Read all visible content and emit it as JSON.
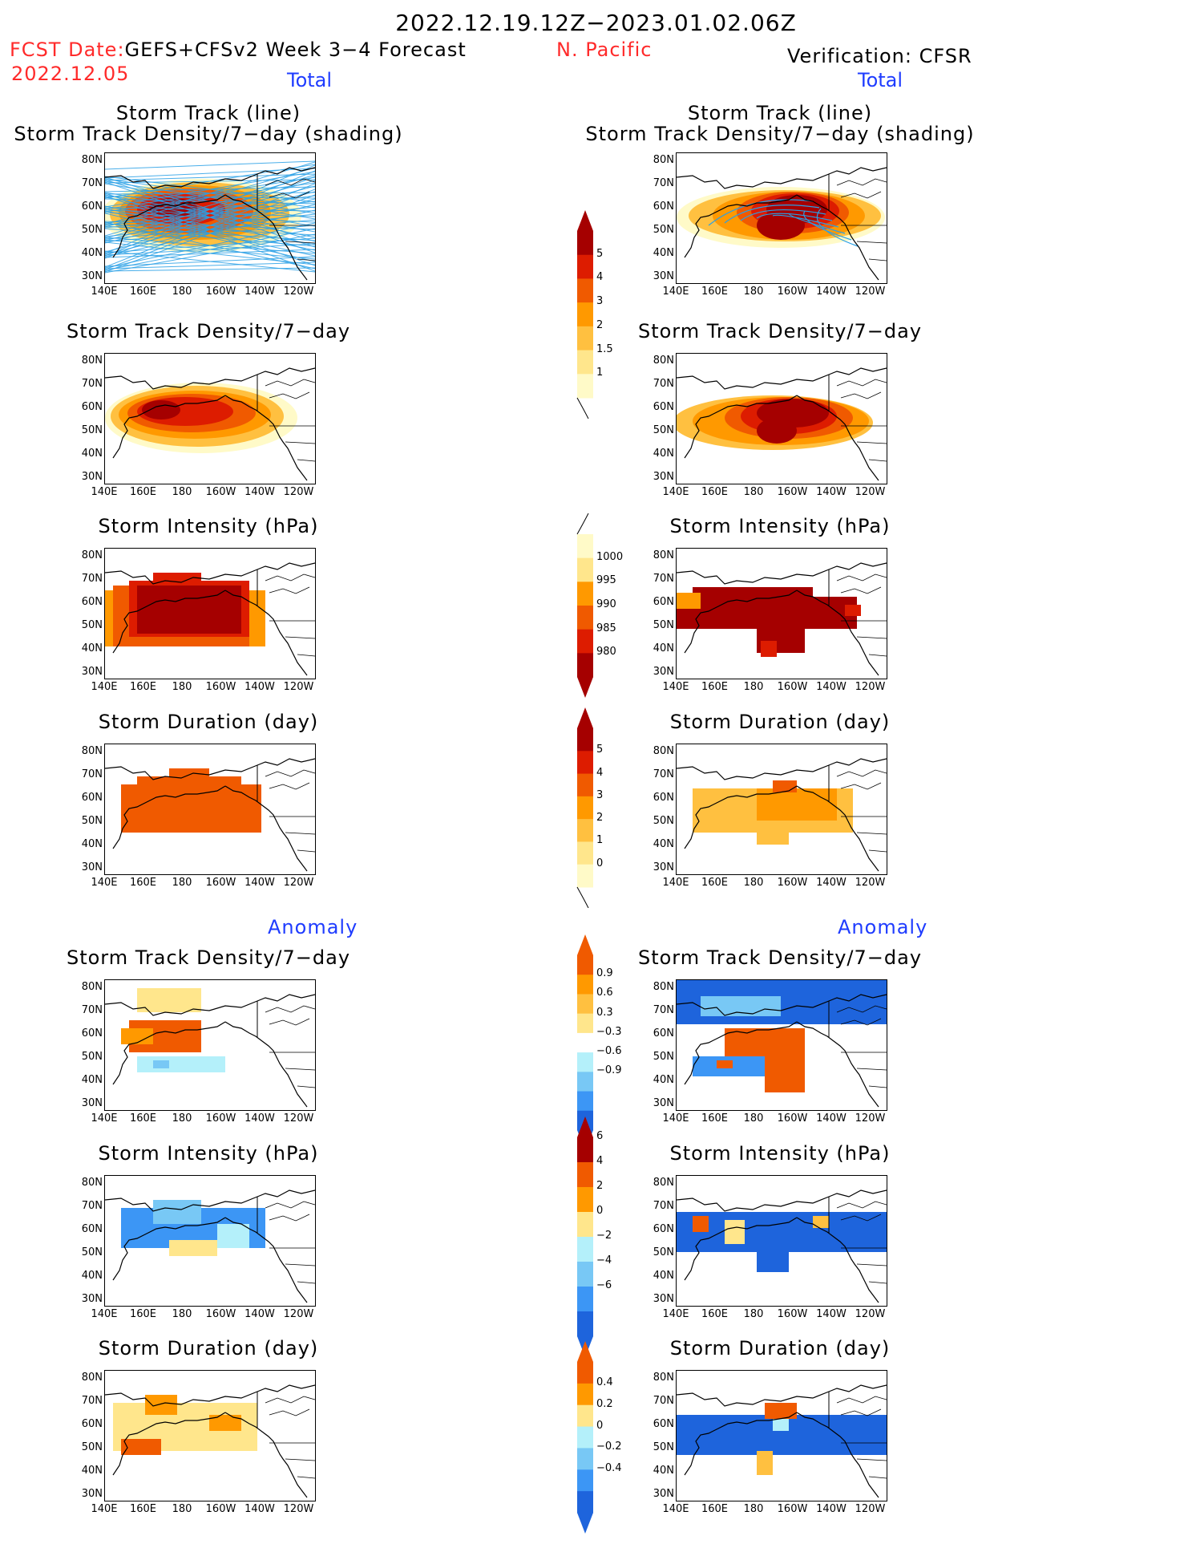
{
  "header": {
    "period": "2022.12.19.12Z−2023.01.02.06Z",
    "region": "N. Pacific",
    "fcst_label": "FCST Date:",
    "fcst_model": "GEFS+CFSv2 Week 3−4 Forecast",
    "fcst_date": "2022.12.05",
    "verification": "Verification: CFSR",
    "left_total": "Total",
    "right_total": "Total",
    "left_anomaly": "Anomaly",
    "right_anomaly": "Anomaly"
  },
  "panel_titles": {
    "track_line": "Storm Track (line)",
    "track_shading": "Storm Track Density/7−day (shading)",
    "density": "Storm Track Density/7−day",
    "intensity": "Storm Intensity (hPa)",
    "duration": "Storm Duration (day)"
  },
  "axes": {
    "lat_labels": [
      "80N",
      "70N",
      "60N",
      "50N",
      "40N",
      "30N"
    ],
    "lon_labels": [
      "140E",
      "160E",
      "180",
      "160W",
      "140W",
      "120W"
    ]
  },
  "colorbars": {
    "density_total": [
      "5",
      "4",
      "3",
      "2",
      "1.5",
      "1"
    ],
    "intensity_total": [
      "1000",
      "995",
      "990",
      "985",
      "980"
    ],
    "duration_total": [
      "5",
      "4",
      "3",
      "2",
      "1",
      "0"
    ],
    "density_anom": [
      "0.9",
      "0.6",
      "0.3",
      "−0.3",
      "−0.6",
      "−0.9"
    ],
    "intensity_anom": [
      "6",
      "4",
      "2",
      "0",
      "−2",
      "−4",
      "−6"
    ],
    "duration_anom": [
      "0.4",
      "0.2",
      "0",
      "−0.2",
      "−0.4"
    ]
  },
  "colors": {
    "dark_red": "#a50000",
    "red": "#dd1c00",
    "orange_red": "#f05a00",
    "orange": "#ff9900",
    "light_orange": "#ffc040",
    "pale_yellow": "#ffe68c",
    "cream": "#fffac8",
    "pale_blue": "#b4f0fa",
    "light_blue": "#78c8f5",
    "mid_blue": "#3c96f5",
    "blue": "#1e64dc",
    "track_blue": "#2aa0e6"
  }
}
